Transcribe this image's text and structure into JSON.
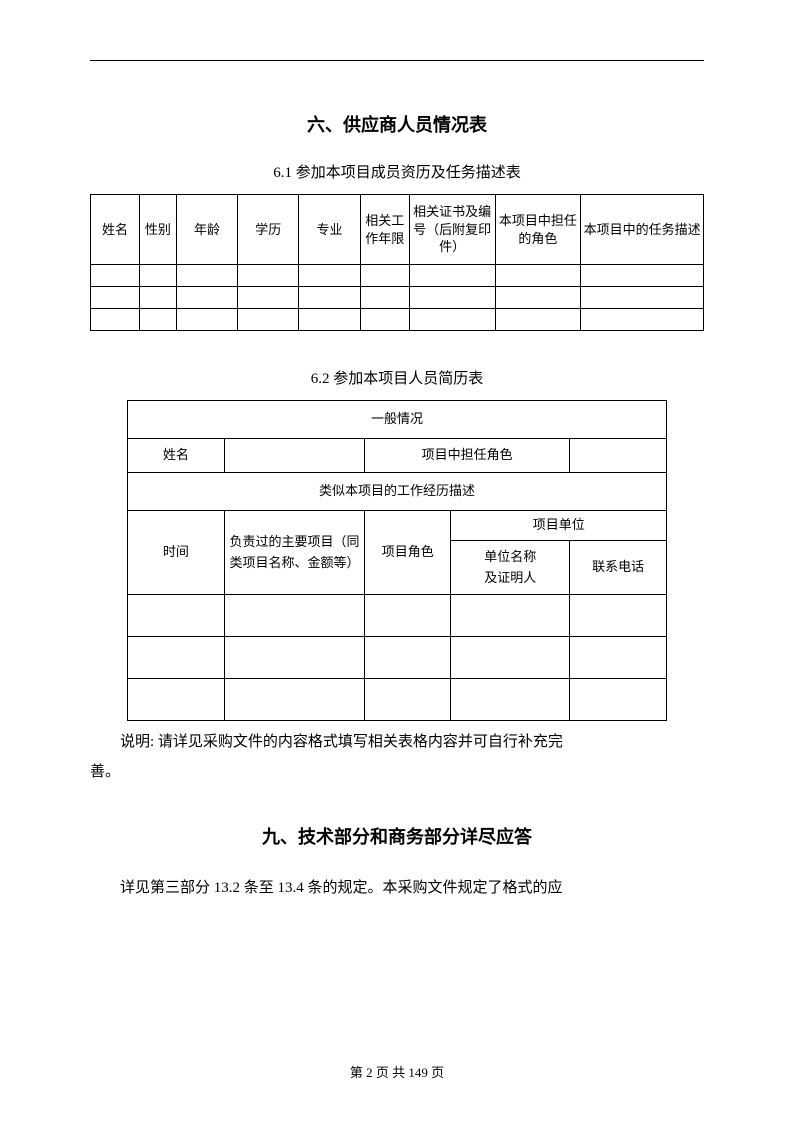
{
  "section6": {
    "title": "六、供应商人员情况表",
    "sub1": {
      "title": "6.1 参加本项目成员资历及任务描述表",
      "headers": [
        "姓名",
        "性别",
        "年龄",
        "学历",
        "专业",
        "相关工作年限",
        "相关证书及编号（后附复印件）",
        "本项目中担任的角色",
        "本项目中的任务描述"
      ],
      "empty_rows": 3,
      "col_widths_pct": [
        8,
        6,
        10,
        10,
        10,
        8,
        14,
        14,
        20
      ]
    },
    "sub2": {
      "title": "6.2 参加本项目人员简历表",
      "general_header": "一般情况",
      "name_label": "姓名",
      "role_label": "项目中担任角色",
      "desc_header": "类似本项目的工作经历描述",
      "time_label": "时间",
      "proj_label": "负责过的主要项目（同类项目名称、金额等）",
      "role2_label": "项目角色",
      "unit_label": "项目单位",
      "unit_name_label": "单位名称\n及证明人",
      "phone_label": "联系电话",
      "empty_rows": 3
    },
    "note_line1": "说明: 请详见采购文件的内容格式填写相关表格内容并可自行补充完",
    "note_line2": "善。"
  },
  "section9": {
    "title": "九、技术部分和商务部分详尽应答",
    "body": "详见第三部分 13.2 条至 13.4 条的规定。本采购文件规定了格式的应"
  },
  "footer": "第 2 页 共 149 页"
}
